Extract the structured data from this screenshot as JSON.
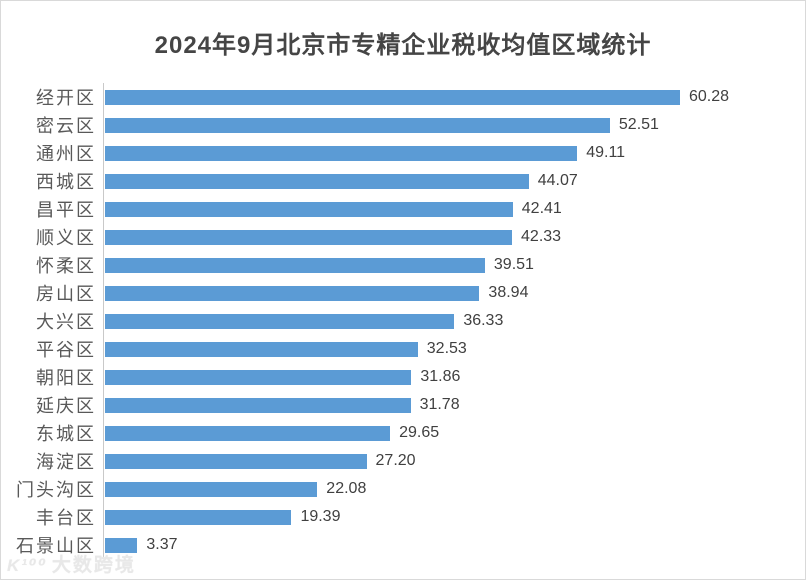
{
  "title": "2024年9月北京市专精企业税收均值区域统计",
  "watermark": {
    "logo": "K¹⁰⁰",
    "text": "大数跨境"
  },
  "colors": {
    "bar": "#5B9BD5",
    "title_text": "#454545",
    "category_label": "#595959",
    "value_label": "#404040",
    "axis_line": "#C9C9C9",
    "watermark": "#E8E8E8"
  },
  "chart_data": {
    "type": "bar",
    "orientation": "horizontal",
    "title": "2024年9月北京市专精企业税收均值区域统计",
    "categories": [
      "经开区",
      "密云区",
      "通州区",
      "西城区",
      "昌平区",
      "顺义区",
      "怀柔区",
      "房山区",
      "大兴区",
      "平谷区",
      "朝阳区",
      "延庆区",
      "东城区",
      "海淀区",
      "门头沟区",
      "丰台区",
      "石景山区"
    ],
    "values": [
      60.28,
      52.51,
      49.11,
      44.07,
      42.41,
      42.33,
      39.51,
      38.94,
      36.33,
      32.53,
      31.86,
      31.78,
      29.65,
      27.2,
      22.08,
      19.39,
      3.37
    ],
    "value_labels": [
      "60.28",
      "52.51",
      "49.11",
      "44.07",
      "42.41",
      "42.33",
      "39.51",
      "38.94",
      "36.33",
      "32.53",
      "31.86",
      "31.78",
      "29.65",
      "27.20",
      "22.08",
      "19.39",
      "3.37"
    ],
    "xlabel": "",
    "ylabel": "",
    "xlim": [
      0,
      65
    ],
    "grid": false,
    "legend": false,
    "data_labels": "outside-end",
    "bar_color": "#5B9BD5"
  }
}
